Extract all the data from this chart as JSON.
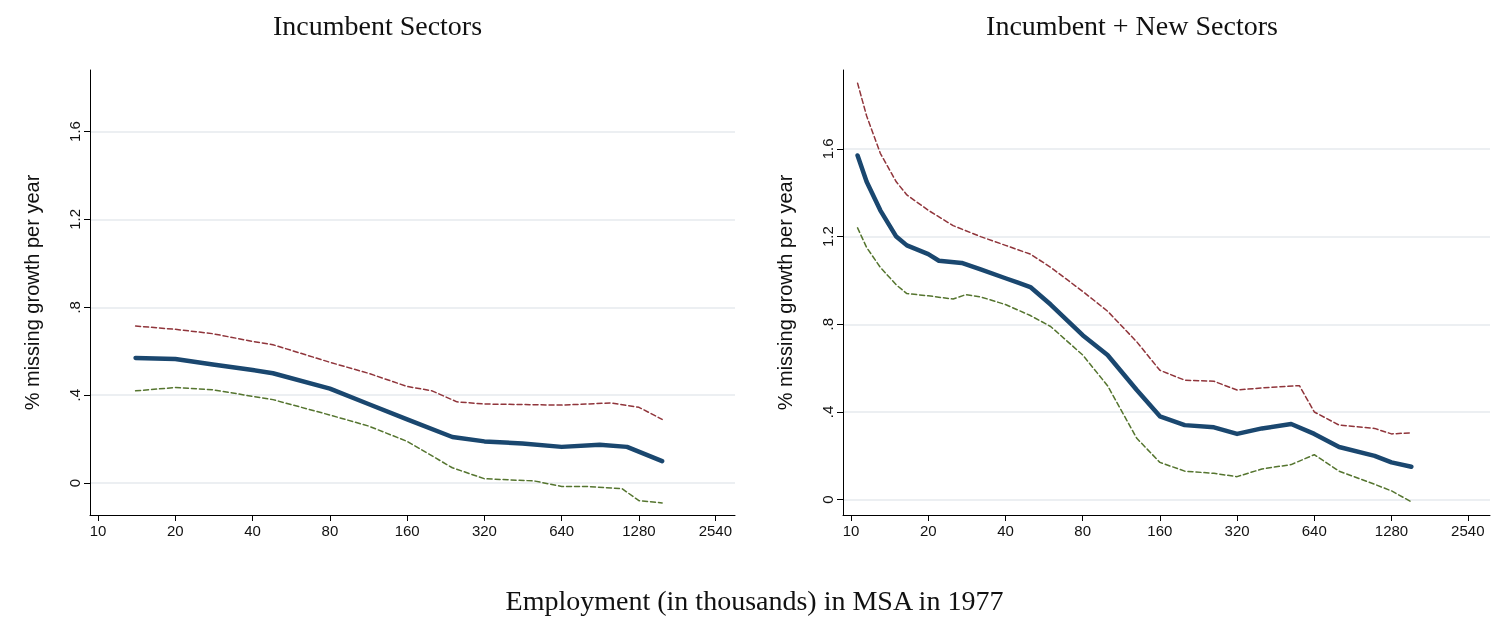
{
  "chart_data": [
    {
      "type": "line",
      "title": "Incumbent Sectors",
      "xlabel": "Employment (in thousands) in MSA in 1977",
      "ylabel": "% missing growth per year",
      "log": "x",
      "grid": "y",
      "marker": "none",
      "xlim": [
        9.3,
        3030
      ],
      "xticks": [
        10,
        20,
        40,
        80,
        160,
        320,
        640,
        1280,
        2540
      ],
      "ylim": [
        -0.145,
        1.88
      ],
      "yticks": [
        0,
        {
          "value": 0.4,
          "label": ".4"
        },
        {
          "value": 0.8,
          "label": ".8"
        },
        {
          "value": 1.2,
          "label": "1.2"
        },
        {
          "value": 1.6,
          "label": "1.6"
        }
      ],
      "series": [
        {
          "color": "#90353b",
          "line_style": "dashed",
          "x": [
            14,
            20,
            28,
            40,
            48,
            80,
            113,
            160,
            200,
            250,
            320,
            640,
            1000,
            1280,
            1576
          ],
          "values": [
            0.715,
            0.7,
            0.68,
            0.645,
            0.63,
            0.55,
            0.5,
            0.44,
            0.42,
            0.37,
            0.36,
            0.355,
            0.365,
            0.345,
            0.29
          ]
        },
        {
          "color": "#55752f",
          "line_style": "dashed",
          "x": [
            14,
            20,
            28,
            40,
            48,
            80,
            113,
            160,
            240,
            320,
            500,
            640,
            800,
            1100,
            1280,
            1576
          ],
          "values": [
            0.42,
            0.435,
            0.425,
            0.395,
            0.38,
            0.31,
            0.26,
            0.19,
            0.07,
            0.02,
            0.01,
            -0.015,
            -0.015,
            -0.025,
            -0.08,
            -0.09
          ]
        },
        {
          "color": "#1a476f",
          "line_style": "solid",
          "x": [
            14,
            20,
            28,
            40,
            48,
            80,
            113,
            160,
            240,
            320,
            450,
            640,
            900,
            1150,
            1576
          ],
          "values": [
            0.57,
            0.565,
            0.54,
            0.515,
            0.5,
            0.43,
            0.36,
            0.29,
            0.21,
            0.19,
            0.18,
            0.165,
            0.175,
            0.165,
            0.1
          ]
        }
      ]
    },
    {
      "type": "line",
      "title": "Incumbent + New Sectors",
      "ylabel": "% missing growth per year",
      "log": "x",
      "grid": "y",
      "marker": "none",
      "xlim": [
        9.3,
        3100
      ],
      "xticks": [
        10,
        20,
        40,
        80,
        160,
        320,
        640,
        1280,
        2540
      ],
      "ylim": [
        -0.07,
        1.96
      ],
      "yticks": [
        0,
        {
          "value": 0.4,
          "label": ".4"
        },
        {
          "value": 0.8,
          "label": ".8"
        },
        {
          "value": 1.2,
          "label": "1.2"
        },
        {
          "value": 1.6,
          "label": "1.6"
        }
      ],
      "series": [
        {
          "color": "#90353b",
          "line_style": "dashed",
          "x": [
            10.6,
            11.5,
            13,
            15,
            16.5,
            20,
            25,
            32,
            40,
            50,
            60,
            80,
            100,
            130,
            160,
            200,
            260,
            320,
            400,
            560,
            640,
            800,
            1100,
            1280,
            1530
          ],
          "values": [
            1.9,
            1.75,
            1.58,
            1.45,
            1.39,
            1.32,
            1.25,
            1.2,
            1.16,
            1.12,
            1.06,
            0.95,
            0.86,
            0.72,
            0.59,
            0.545,
            0.54,
            0.5,
            0.51,
            0.52,
            0.4,
            0.34,
            0.325,
            0.3,
            0.305
          ]
        },
        {
          "color": "#55752f",
          "line_style": "dashed",
          "x": [
            10.6,
            11.5,
            13,
            15,
            16.5,
            20,
            25,
            28,
            32,
            40,
            50,
            60,
            80,
            100,
            130,
            160,
            200,
            260,
            320,
            400,
            520,
            640,
            800,
            1100,
            1280,
            1530
          ],
          "values": [
            1.24,
            1.15,
            1.06,
            0.98,
            0.94,
            0.93,
            0.915,
            0.935,
            0.925,
            0.89,
            0.84,
            0.79,
            0.66,
            0.52,
            0.28,
            0.17,
            0.13,
            0.12,
            0.105,
            0.14,
            0.16,
            0.205,
            0.13,
            0.07,
            0.04,
            -0.01
          ]
        },
        {
          "color": "#1a476f",
          "line_style": "solid",
          "x": [
            10.6,
            11.5,
            13,
            15,
            16.5,
            20,
            22,
            27,
            32,
            40,
            50,
            60,
            80,
            100,
            130,
            160,
            200,
            260,
            320,
            400,
            520,
            640,
            800,
            1100,
            1280,
            1530
          ],
          "values": [
            1.57,
            1.45,
            1.32,
            1.2,
            1.16,
            1.12,
            1.09,
            1.08,
            1.05,
            1.01,
            0.97,
            0.89,
            0.75,
            0.66,
            0.5,
            0.38,
            0.34,
            0.33,
            0.3,
            0.325,
            0.345,
            0.3,
            0.24,
            0.2,
            0.17,
            0.15
          ]
        }
      ]
    }
  ]
}
